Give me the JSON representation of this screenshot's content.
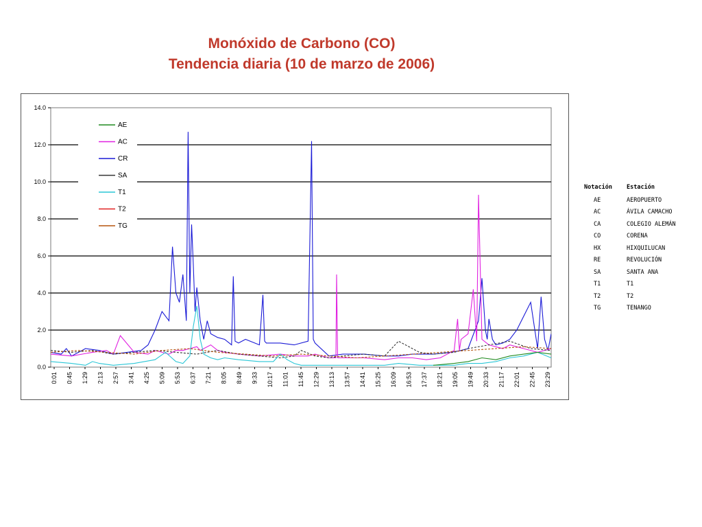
{
  "title_line1": "Monóxido de Carbono (CO)",
  "title_line2": "Tendencia diaria (10 de marzo de 2006)",
  "colors": {
    "AE": "#1f8a1f",
    "AC": "#e020e0",
    "CR": "#1a1ad6",
    "SA": "#333333",
    "T1": "#29c6d6",
    "T2": "#e02020",
    "TG": "#b5540c"
  },
  "chart_data": {
    "type": "line",
    "ylim": [
      0,
      14
    ],
    "yticks": [
      "0.0",
      "2.0",
      "4.0",
      "6.0",
      "8.0",
      "10.0",
      "12.0",
      "14.0"
    ],
    "x_ticks": [
      "0:01",
      "0:45",
      "1:29",
      "2:13",
      "2:57",
      "3:41",
      "4:25",
      "5:09",
      "5:53",
      "6:37",
      "7:21",
      "8:05",
      "8:49",
      "9:33",
      "10:17",
      "11:01",
      "11:45",
      "12:29",
      "13:13",
      "13:57",
      "14:41",
      "15:25",
      "16:09",
      "16:53",
      "17:37",
      "18:21",
      "19:05",
      "19:49",
      "20:33",
      "21:17",
      "22:01",
      "22:45",
      "23:29"
    ],
    "legend": [
      "AE",
      "AC",
      "CR",
      "SA",
      "T1",
      "T2",
      "TG"
    ],
    "grid": true,
    "series": [
      {
        "name": "CR",
        "x": [
          0,
          30,
          45,
          60,
          80,
          100,
          140,
          180,
          220,
          260,
          280,
          300,
          320,
          340,
          350,
          360,
          370,
          380,
          390,
          395,
          400,
          405,
          410,
          415,
          420,
          430,
          440,
          450,
          460,
          480,
          500,
          520,
          525,
          530,
          540,
          560,
          600,
          610,
          615,
          620,
          660,
          700,
          740,
          750,
          755,
          760,
          800,
          840,
          900,
          960,
          1000,
          1040,
          1100,
          1150,
          1180,
          1200,
          1220,
          1230,
          1240,
          1250,
          1255,
          1260,
          1270,
          1280,
          1300,
          1320,
          1340,
          1380,
          1400,
          1410,
          1420,
          1430,
          1439
        ],
        "y": [
          0.8,
          0.7,
          1.0,
          0.6,
          0.8,
          1.0,
          0.9,
          0.7,
          0.8,
          0.9,
          1.2,
          2.0,
          3.0,
          2.5,
          6.5,
          4.0,
          3.5,
          5.0,
          2.5,
          12.7,
          4.0,
          7.7,
          5.5,
          3.0,
          4.3,
          2.5,
          1.5,
          2.5,
          1.8,
          1.6,
          1.5,
          1.2,
          4.9,
          1.4,
          1.3,
          1.5,
          1.2,
          3.9,
          1.4,
          1.3,
          1.3,
          1.2,
          1.4,
          12.2,
          1.5,
          1.3,
          0.6,
          0.7,
          0.7,
          0.6,
          0.6,
          0.7,
          0.7,
          0.8,
          0.9,
          1.0,
          2.0,
          2.5,
          4.8,
          2.0,
          1.5,
          2.6,
          1.5,
          1.2,
          1.3,
          1.5,
          2.0,
          3.5,
          1.0,
          3.8,
          1.5,
          0.9,
          1.8
        ]
      },
      {
        "name": "AC",
        "x": [
          0,
          60,
          120,
          160,
          180,
          200,
          240,
          280,
          300,
          320,
          340,
          360,
          380,
          400,
          420,
          430,
          440,
          460,
          480,
          500,
          540,
          600,
          660,
          700,
          740,
          760,
          800,
          820,
          822,
          825,
          830,
          860,
          900,
          960,
          1000,
          1040,
          1080,
          1120,
          1160,
          1170,
          1175,
          1180,
          1200,
          1215,
          1225,
          1230,
          1240,
          1260,
          1280,
          1300,
          1320,
          1360,
          1400,
          1439
        ],
        "y": [
          0.7,
          0.6,
          0.8,
          0.9,
          0.7,
          1.7,
          0.8,
          0.7,
          0.9,
          0.8,
          0.7,
          0.9,
          0.9,
          1.0,
          1.1,
          0.9,
          1.0,
          1.2,
          0.9,
          0.8,
          0.7,
          0.6,
          0.7,
          0.6,
          0.6,
          0.7,
          0.5,
          0.5,
          5.0,
          0.5,
          0.5,
          0.5,
          0.5,
          0.4,
          0.5,
          0.5,
          0.4,
          0.5,
          0.9,
          2.6,
          0.9,
          1.5,
          1.8,
          4.2,
          1.4,
          9.3,
          1.5,
          1.2,
          1.1,
          1.0,
          1.2,
          1.0,
          0.8,
          1.0
        ]
      },
      {
        "name": "SA",
        "x": [
          0,
          60,
          120,
          180,
          240,
          300,
          360,
          420,
          480,
          540,
          600,
          660,
          700,
          720,
          760,
          800,
          840,
          900,
          960,
          1000,
          1060,
          1100,
          1160,
          1200,
          1260,
          1320,
          1380,
          1439
        ],
        "y": [
          0.9,
          0.8,
          0.9,
          0.7,
          0.8,
          0.9,
          0.8,
          0.7,
          0.9,
          0.7,
          0.6,
          0.5,
          0.6,
          0.9,
          0.6,
          0.5,
          0.6,
          0.7,
          0.6,
          1.4,
          0.8,
          0.7,
          0.8,
          1.0,
          1.2,
          1.4,
          1.0,
          0.9
        ]
      },
      {
        "name": "T1",
        "x": [
          0,
          60,
          100,
          120,
          140,
          180,
          240,
          300,
          330,
          360,
          380,
          400,
          410,
          420,
          430,
          440,
          460,
          480,
          500,
          540,
          600,
          640,
          660,
          680,
          700,
          720,
          760,
          800,
          860,
          900,
          960,
          1000,
          1060,
          1100,
          1160,
          1200,
          1240,
          1280,
          1320,
          1360,
          1400,
          1439
        ],
        "y": [
          0.3,
          0.2,
          0.1,
          0.3,
          0.2,
          0.1,
          0.2,
          0.4,
          0.8,
          0.3,
          0.2,
          0.6,
          2.2,
          3.3,
          1.5,
          0.7,
          0.5,
          0.4,
          0.5,
          0.4,
          0.3,
          0.3,
          0.7,
          0.4,
          0.2,
          0.1,
          0.1,
          0.1,
          0.1,
          0.1,
          0.1,
          0.2,
          0.1,
          0.1,
          0.1,
          0.2,
          0.2,
          0.3,
          0.5,
          0.6,
          0.8,
          0.5
        ]
      },
      {
        "name": "AE",
        "x": [
          1100,
          1160,
          1200,
          1240,
          1280,
          1320,
          1360,
          1400,
          1439
        ],
        "y": [
          0.1,
          0.2,
          0.3,
          0.5,
          0.4,
          0.6,
          0.7,
          0.8,
          0.7
        ]
      },
      {
        "name": "TG",
        "x": [
          0,
          80,
          160,
          240,
          320,
          400,
          480,
          560,
          640,
          720,
          800,
          880,
          960,
          1040,
          1120,
          1200,
          1280,
          1360,
          1439
        ],
        "y": [
          0.8,
          0.9,
          0.8,
          0.7,
          0.9,
          1.0,
          0.8,
          0.7,
          0.6,
          0.7,
          0.6,
          0.5,
          0.6,
          0.7,
          0.8,
          0.9,
          1.0,
          1.1,
          1.0
        ]
      }
    ]
  },
  "reference_table": {
    "header_code": "Notación",
    "header_name": "Estación",
    "rows": [
      {
        "code": "AE",
        "name": "AEROPUERTO"
      },
      {
        "code": "AC",
        "name": "ÁVILA CAMACHO"
      },
      {
        "code": "CA",
        "name": "COLEGIO ALEMÁN"
      },
      {
        "code": "CO",
        "name": "CORENA"
      },
      {
        "code": "HX",
        "name": "HIXQUILUCAN"
      },
      {
        "code": "RE",
        "name": "REVOLUCIÓN"
      },
      {
        "code": "SA",
        "name": "SANTA ANA"
      },
      {
        "code": "T1",
        "name": "T1"
      },
      {
        "code": "T2",
        "name": "T2"
      },
      {
        "code": "TG",
        "name": "TENANGO"
      }
    ]
  }
}
